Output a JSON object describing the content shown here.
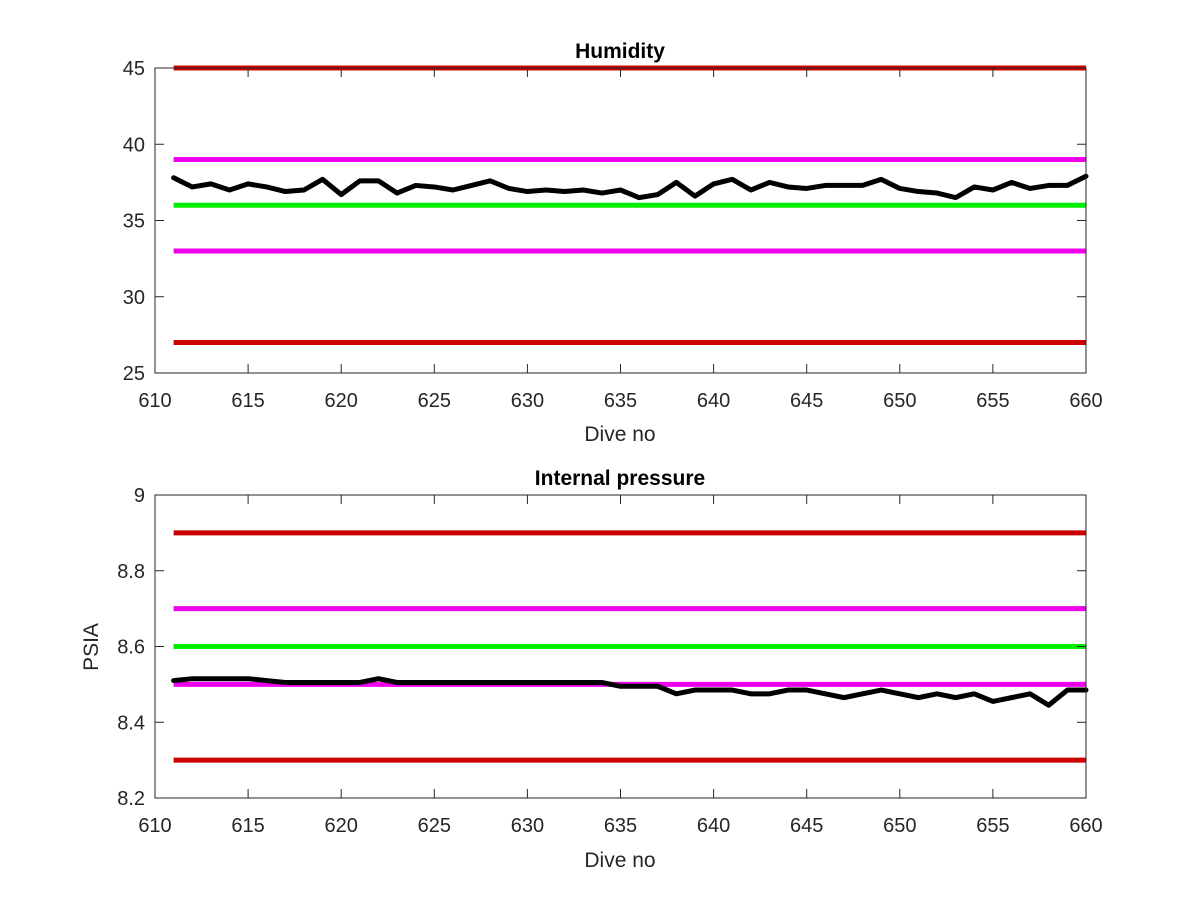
{
  "chart_data": [
    {
      "type": "line",
      "title": "Humidity",
      "xlabel": "Dive no",
      "ylabel": "",
      "xlim": [
        610,
        660
      ],
      "ylim": [
        25,
        45
      ],
      "xticks": [
        610,
        615,
        620,
        625,
        630,
        635,
        640,
        645,
        650,
        655,
        660
      ],
      "yticks": [
        25,
        30,
        35,
        40,
        45
      ],
      "grid": false,
      "reference_lines": [
        {
          "y": 45,
          "color": "#cc0000"
        },
        {
          "y": 39,
          "color": "#ee00ee"
        },
        {
          "y": 36,
          "color": "#00ee00"
        },
        {
          "y": 33,
          "color": "#ee00ee"
        },
        {
          "y": 27,
          "color": "#cc0000"
        }
      ],
      "series": [
        {
          "color": "#000000",
          "x": [
            611,
            612,
            613,
            614,
            615,
            616,
            617,
            618,
            619,
            620,
            621,
            622,
            623,
            624,
            625,
            626,
            627,
            628,
            629,
            630,
            631,
            632,
            633,
            634,
            635,
            636,
            637,
            638,
            639,
            640,
            641,
            642,
            643,
            644,
            645,
            646,
            647,
            648,
            649,
            650,
            651,
            652,
            653,
            654,
            655,
            656,
            657,
            658,
            659,
            660
          ],
          "y": [
            37.8,
            37.2,
            37.4,
            37.0,
            37.4,
            37.2,
            36.9,
            37.0,
            37.7,
            36.7,
            37.6,
            37.6,
            36.8,
            37.3,
            37.2,
            37.0,
            37.3,
            37.6,
            37.1,
            36.9,
            37.0,
            36.9,
            37.0,
            36.8,
            37.0,
            36.5,
            36.7,
            37.5,
            36.6,
            37.4,
            37.7,
            37.0,
            37.5,
            37.2,
            37.1,
            37.3,
            37.3,
            37.3,
            37.7,
            37.1,
            36.9,
            36.8,
            36.5,
            37.2,
            37.0,
            37.5,
            37.1,
            37.3,
            37.3,
            37.9
          ]
        }
      ]
    },
    {
      "type": "line",
      "title": "Internal pressure",
      "xlabel": "Dive no",
      "ylabel": "PSIA",
      "xlim": [
        610,
        660
      ],
      "ylim": [
        8.2,
        9
      ],
      "xticks": [
        610,
        615,
        620,
        625,
        630,
        635,
        640,
        645,
        650,
        655,
        660
      ],
      "yticks": [
        8.2,
        8.4,
        8.6,
        8.8,
        9
      ],
      "grid": false,
      "reference_lines": [
        {
          "y": 8.9,
          "color": "#cc0000"
        },
        {
          "y": 8.7,
          "color": "#ee00ee"
        },
        {
          "y": 8.6,
          "color": "#00ee00"
        },
        {
          "y": 8.5,
          "color": "#ee00ee"
        },
        {
          "y": 8.3,
          "color": "#cc0000"
        }
      ],
      "series": [
        {
          "color": "#000000",
          "x": [
            611,
            612,
            613,
            614,
            615,
            616,
            617,
            618,
            619,
            620,
            621,
            622,
            623,
            624,
            625,
            626,
            627,
            628,
            629,
            630,
            631,
            632,
            633,
            634,
            635,
            636,
            637,
            638,
            639,
            640,
            641,
            642,
            643,
            644,
            645,
            646,
            647,
            648,
            649,
            650,
            651,
            652,
            653,
            654,
            655,
            656,
            657,
            658,
            659,
            660
          ],
          "y": [
            8.51,
            8.515,
            8.515,
            8.515,
            8.515,
            8.51,
            8.505,
            8.505,
            8.505,
            8.505,
            8.505,
            8.515,
            8.505,
            8.505,
            8.505,
            8.505,
            8.505,
            8.505,
            8.505,
            8.505,
            8.505,
            8.505,
            8.505,
            8.505,
            8.495,
            8.495,
            8.495,
            8.475,
            8.485,
            8.485,
            8.485,
            8.475,
            8.475,
            8.485,
            8.485,
            8.475,
            8.465,
            8.475,
            8.485,
            8.475,
            8.465,
            8.475,
            8.465,
            8.475,
            8.455,
            8.465,
            8.475,
            8.445,
            8.485,
            8.485
          ]
        }
      ]
    }
  ]
}
